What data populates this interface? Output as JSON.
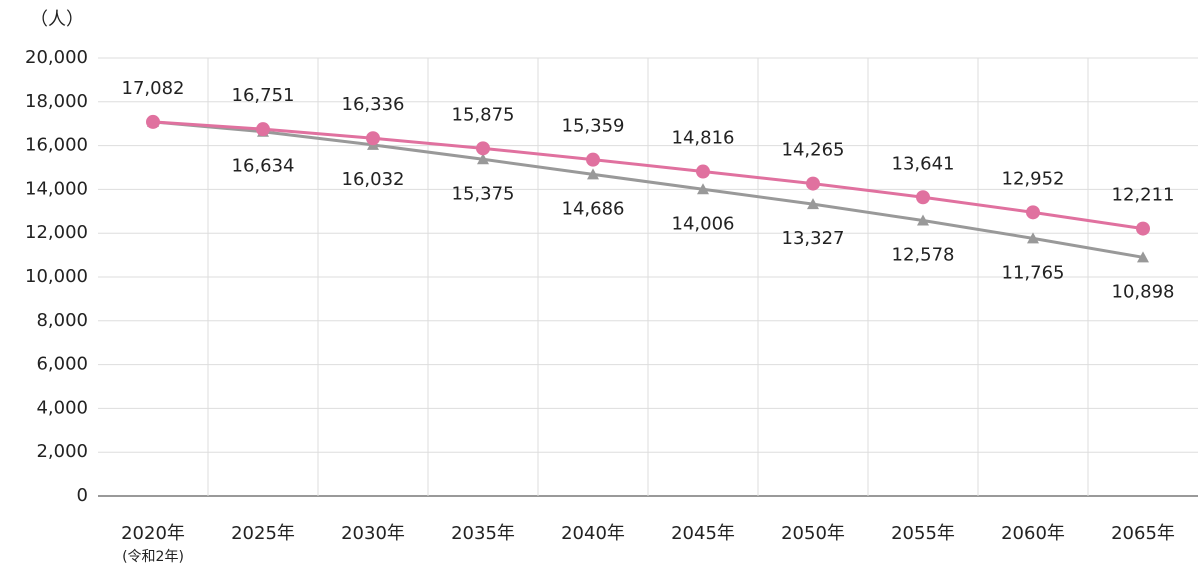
{
  "chart_data": {
    "type": "line",
    "y_label": "（人）",
    "categories": [
      "2020年",
      "2025年",
      "2030年",
      "2035年",
      "2040年",
      "2045年",
      "2050年",
      "2055年",
      "2060年",
      "2065年"
    ],
    "category_notes": [
      "(令和2年)",
      null,
      null,
      null,
      null,
      null,
      null,
      null,
      null,
      null
    ],
    "series": [
      {
        "color": "#e0719f",
        "marker": "circle",
        "label_position": "above",
        "values": [
          17082,
          16751,
          16336,
          15875,
          15359,
          14816,
          14265,
          13641,
          12952,
          12211
        ],
        "value_labels": [
          "17,082",
          "16,751",
          "16,336",
          "15,875",
          "15,359",
          "14,816",
          "14,265",
          "13,641",
          "12,952",
          "12,211"
        ]
      },
      {
        "color": "#999999",
        "marker": "triangle",
        "label_position": "below",
        "values": [
          17082,
          16634,
          16032,
          15375,
          14686,
          14006,
          13327,
          12578,
          11765,
          10898
        ],
        "value_labels": [
          null,
          "16,634",
          "16,032",
          "15,375",
          "14,686",
          "14,006",
          "13,327",
          "12,578",
          "11,765",
          "10,898"
        ]
      }
    ],
    "ylim": [
      0,
      20000
    ],
    "yticks": [
      0,
      {
        "value": 2000,
        "label": "2,000"
      },
      {
        "value": 4000,
        "label": "4,000"
      },
      {
        "value": 6000,
        "label": "6,000"
      },
      {
        "value": 8000,
        "label": "8,000"
      },
      {
        "value": 10000,
        "label": "10,000"
      },
      {
        "value": 12000,
        "label": "12,000"
      },
      {
        "value": 14000,
        "label": "14,000"
      },
      {
        "value": 16000,
        "label": "16,000"
      },
      {
        "value": 18000,
        "label": "18,000"
      },
      {
        "value": 20000,
        "label": "20,000"
      }
    ],
    "grid": true
  }
}
